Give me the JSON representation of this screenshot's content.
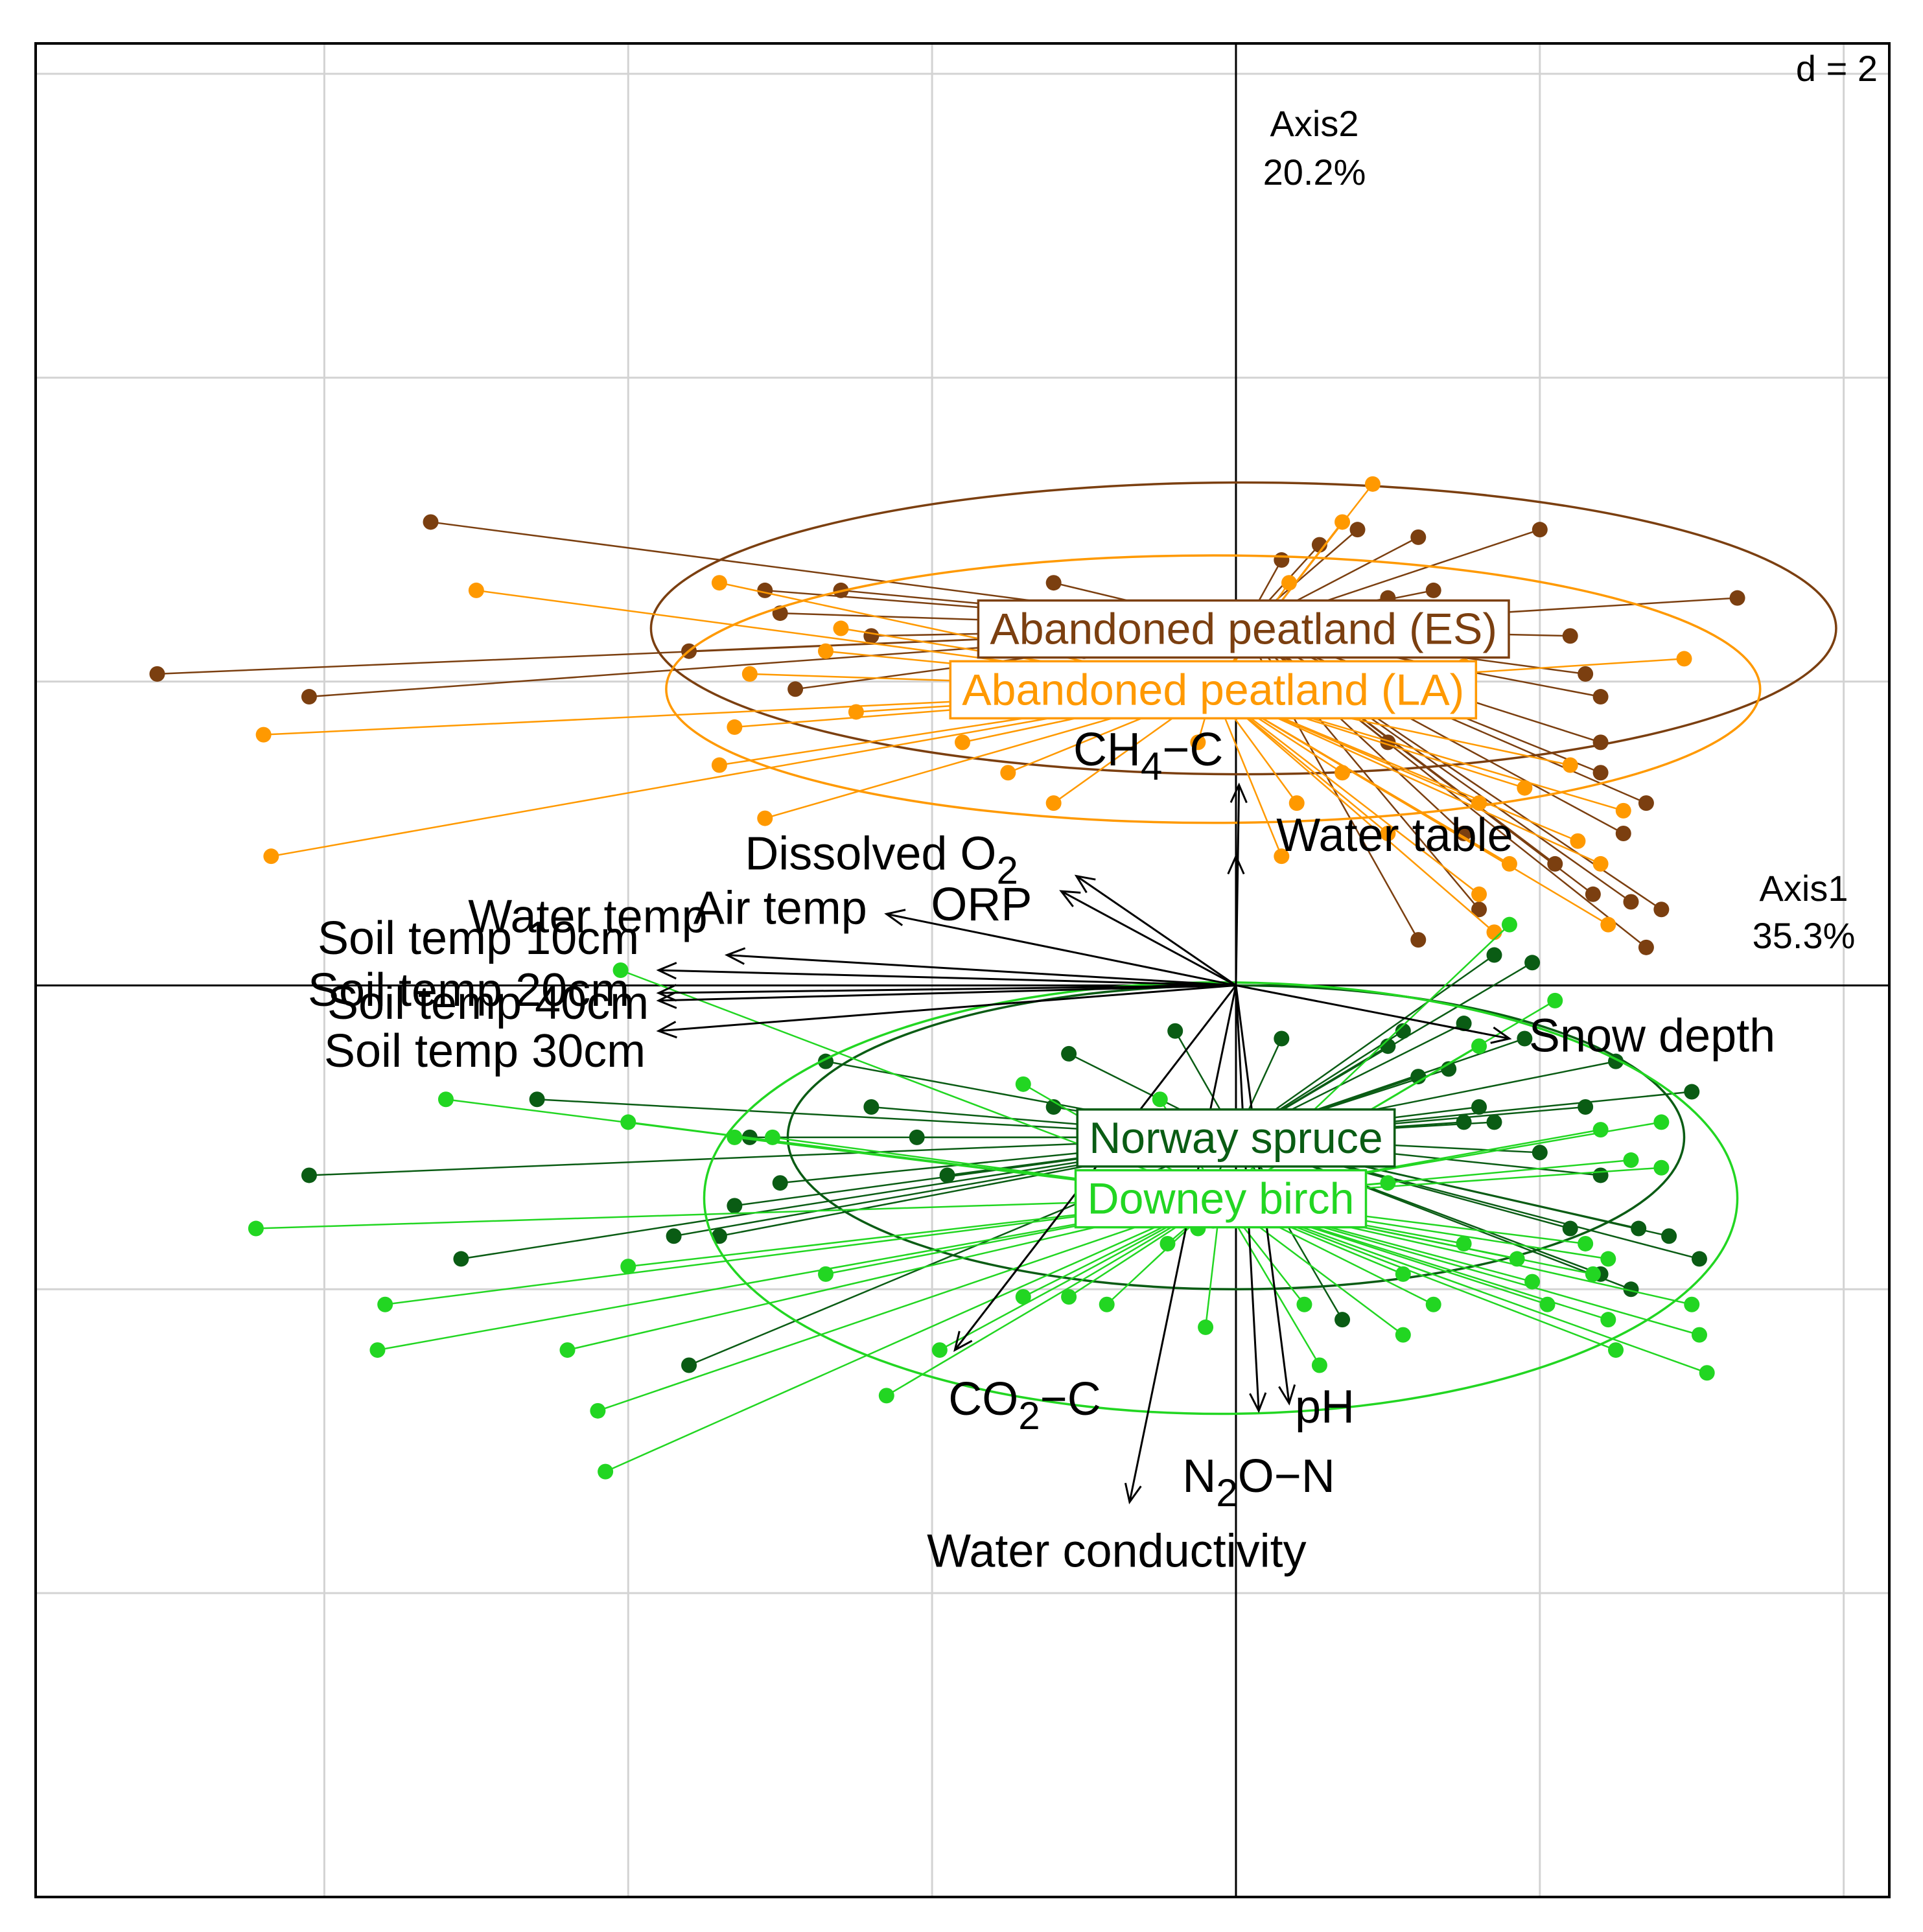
{
  "chart_data": {
    "type": "scatter",
    "scale_label": "d = 2",
    "xlim": [
      -7.9,
      4.3
    ],
    "ylim": [
      -6.0,
      6.2
    ],
    "grid": true,
    "grid_step": 2,
    "axis1": {
      "name": "Axis1",
      "variance": "35.3%"
    },
    "axis2": {
      "name": "Axis2",
      "variance": "20.2%"
    },
    "groups": [
      {
        "name": "Abandoned peatland (ES)",
        "color": "#7b3f10",
        "center": [
          0.05,
          2.35
        ],
        "ellipse": {
          "rx": 3.9,
          "ry": 0.96
        },
        "points": [
          [
            -5.3,
            3.05
          ],
          [
            -7.1,
            2.05
          ],
          [
            -6.1,
            1.9
          ],
          [
            0.3,
            2.8
          ],
          [
            0.55,
            2.9
          ],
          [
            1.2,
            2.95
          ],
          [
            1.3,
            2.6
          ],
          [
            2.0,
            3.0
          ],
          [
            2.3,
            2.05
          ],
          [
            3.3,
            2.55
          ],
          [
            2.4,
            1.4
          ],
          [
            2.55,
            1.0
          ],
          [
            2.35,
            0.6
          ],
          [
            2.6,
            0.55
          ],
          [
            -1.2,
            2.65
          ],
          [
            -3.1,
            2.6
          ],
          [
            -2.4,
            2.3
          ],
          [
            -3.6,
            2.2
          ],
          [
            -2.6,
            2.6
          ],
          [
            -3.0,
            2.45
          ],
          [
            -2.9,
            1.95
          ],
          [
            1.0,
            2.55
          ],
          [
            2.4,
            1.6
          ],
          [
            2.7,
            1.2
          ],
          [
            2.7,
            0.25
          ],
          [
            1.5,
            1.0
          ],
          [
            1.6,
            0.5
          ],
          [
            2.2,
            2.3
          ],
          [
            2.4,
            1.9
          ],
          [
            2.8,
            0.5
          ],
          [
            0.8,
            3.0
          ],
          [
            -1.0,
            2.2
          ],
          [
            -1.5,
            2.4
          ],
          [
            1.0,
            1.6
          ],
          [
            2.1,
            0.8
          ],
          [
            1.2,
            0.3
          ]
        ]
      },
      {
        "name": "Abandoned peatland (LA)",
        "color": "#ff9900",
        "center": [
          -0.15,
          1.95
        ],
        "ellipse": {
          "rx": 3.6,
          "ry": 0.88
        },
        "points": [
          [
            -5.0,
            2.6
          ],
          [
            -6.4,
            1.65
          ],
          [
            -6.35,
            0.85
          ],
          [
            0.9,
            3.3
          ],
          [
            0.7,
            3.05
          ],
          [
            0.35,
            2.65
          ],
          [
            -3.4,
            2.65
          ],
          [
            -2.7,
            2.2
          ],
          [
            -3.3,
            1.7
          ],
          [
            -3.4,
            1.45
          ],
          [
            -3.1,
            1.1
          ],
          [
            -1.2,
            1.2
          ],
          [
            -0.25,
            1.6
          ],
          [
            -2.6,
            2.35
          ],
          [
            -3.2,
            2.05
          ],
          [
            0.3,
            1.9
          ],
          [
            0.4,
            1.2
          ],
          [
            0.3,
            0.85
          ],
          [
            1.5,
            2.1
          ],
          [
            2.95,
            2.15
          ],
          [
            2.2,
            1.45
          ],
          [
            2.55,
            1.15
          ],
          [
            2.25,
            0.95
          ],
          [
            1.6,
            1.2
          ],
          [
            1.8,
            0.8
          ],
          [
            2.4,
            0.8
          ],
          [
            2.45,
            0.4
          ],
          [
            1.7,
            0.35
          ],
          [
            1.6,
            0.6
          ],
          [
            1.9,
            1.3
          ],
          [
            -2.5,
            1.8
          ],
          [
            -1.8,
            1.6
          ],
          [
            -1.5,
            1.4
          ],
          [
            0.7,
            1.4
          ],
          [
            1.0,
            1.0
          ]
        ]
      },
      {
        "name": "Norway spruce",
        "color": "#0a5c14",
        "center": [
          0.0,
          -1.0
        ],
        "ellipse": {
          "rx": 2.95,
          "ry": 1.0
        },
        "points": [
          [
            -6.1,
            -1.25
          ],
          [
            -5.1,
            -1.8
          ],
          [
            -4.6,
            -0.75
          ],
          [
            -3.7,
            -1.65
          ],
          [
            -3.6,
            -2.5
          ],
          [
            -3.4,
            -1.65
          ],
          [
            -3.3,
            -1.45
          ],
          [
            -3.0,
            -1.3
          ],
          [
            -2.7,
            -0.5
          ],
          [
            -2.4,
            -0.8
          ],
          [
            -1.9,
            -1.25
          ],
          [
            -1.1,
            -0.45
          ],
          [
            -0.4,
            -0.3
          ],
          [
            -0.2,
            -1.4
          ],
          [
            0.3,
            -0.35
          ],
          [
            0.45,
            -1.55
          ],
          [
            0.7,
            -2.2
          ],
          [
            1.0,
            -0.4
          ],
          [
            1.1,
            -0.3
          ],
          [
            1.2,
            -0.6
          ],
          [
            1.4,
            -0.55
          ],
          [
            1.5,
            -0.25
          ],
          [
            1.6,
            -0.8
          ],
          [
            1.7,
            -0.9
          ],
          [
            1.7,
            0.2
          ],
          [
            1.95,
            0.15
          ],
          [
            2.0,
            -1.1
          ],
          [
            2.2,
            -1.6
          ],
          [
            2.3,
            -0.8
          ],
          [
            2.4,
            -1.25
          ],
          [
            2.4,
            -1.9
          ],
          [
            2.5,
            -0.5
          ],
          [
            2.6,
            -2.0
          ],
          [
            2.65,
            -1.6
          ],
          [
            2.85,
            -1.65
          ],
          [
            3.05,
            -1.8
          ],
          [
            3.0,
            -0.7
          ],
          [
            1.9,
            -0.35
          ],
          [
            1.5,
            -0.9
          ],
          [
            -2.1,
            -1.0
          ],
          [
            -1.2,
            -0.8
          ],
          [
            -3.2,
            -1.0
          ]
        ]
      },
      {
        "name": "Downey birch",
        "color": "#22d622",
        "center": [
          -0.1,
          -1.4
        ],
        "ellipse": {
          "rx": 3.4,
          "ry": 1.42
        },
        "points": [
          [
            -6.45,
            -1.6
          ],
          [
            -5.6,
            -2.1
          ],
          [
            -5.65,
            -2.4
          ],
          [
            -5.2,
            -0.75
          ],
          [
            -4.4,
            -2.4
          ],
          [
            -4.2,
            -2.8
          ],
          [
            -4.15,
            -3.2
          ],
          [
            -4.0,
            -0.9
          ],
          [
            -4.05,
            0.1
          ],
          [
            -4.0,
            -1.85
          ],
          [
            -3.3,
            -1.0
          ],
          [
            -3.05,
            -1.0
          ],
          [
            -2.7,
            -1.9
          ],
          [
            -2.3,
            -2.7
          ],
          [
            -1.95,
            -2.4
          ],
          [
            -1.4,
            -2.05
          ],
          [
            -1.1,
            -2.05
          ],
          [
            -0.85,
            -2.1
          ],
          [
            -0.5,
            -0.75
          ],
          [
            -0.45,
            -1.7
          ],
          [
            -0.3,
            -1.35
          ],
          [
            -0.25,
            -1.6
          ],
          [
            -0.15,
            -1.55
          ],
          [
            0.05,
            -1.55
          ],
          [
            0.3,
            -1.45
          ],
          [
            -0.2,
            -2.25
          ],
          [
            0.45,
            -2.1
          ],
          [
            0.55,
            -2.5
          ],
          [
            1.1,
            -2.3
          ],
          [
            1.3,
            -2.1
          ],
          [
            1.1,
            -1.9
          ],
          [
            1.5,
            -1.7
          ],
          [
            1.85,
            -1.8
          ],
          [
            1.95,
            -1.95
          ],
          [
            2.05,
            -2.1
          ],
          [
            2.3,
            -1.7
          ],
          [
            2.35,
            -1.9
          ],
          [
            2.4,
            -0.95
          ],
          [
            2.6,
            -1.15
          ],
          [
            2.8,
            -0.9
          ],
          [
            2.8,
            -1.2
          ],
          [
            2.45,
            -2.2
          ],
          [
            2.5,
            -2.4
          ],
          [
            2.45,
            -1.8
          ],
          [
            1.6,
            -0.4
          ],
          [
            1.8,
            0.4
          ],
          [
            2.1,
            -0.1
          ],
          [
            3.0,
            -2.1
          ],
          [
            3.05,
            -2.3
          ],
          [
            3.1,
            -2.55
          ],
          [
            1.0,
            -1.3
          ],
          [
            -1.4,
            -0.65
          ]
        ]
      }
    ],
    "variables": [
      {
        "name": "CH₄−C",
        "base": "CH",
        "sub": "4",
        "suffix": "−C",
        "x": 0.02,
        "y": 1.32
      },
      {
        "name": "Water table",
        "x": 0.0,
        "y": 0.85
      },
      {
        "name": "Dissolved O₂",
        "base": "Dissolved O",
        "sub": "2",
        "suffix": "",
        "x": -1.05,
        "y": 0.72
      },
      {
        "name": "ORP",
        "x": -1.15,
        "y": 0.62
      },
      {
        "name": "Air temp",
        "x": -2.3,
        "y": 0.47
      },
      {
        "name": "Water temp",
        "x": -3.35,
        "y": 0.2
      },
      {
        "name": "Soil temp 10cm",
        "x": -3.8,
        "y": 0.1
      },
      {
        "name": "Soil temp 20cm",
        "x": -3.8,
        "y": -0.05
      },
      {
        "name": "Soil temp 40cm",
        "x": -3.8,
        "y": -0.1
      },
      {
        "name": "Soil temp 30cm",
        "x": -3.8,
        "y": -0.3
      },
      {
        "name": "Snow depth",
        "x": 1.8,
        "y": -0.35
      },
      {
        "name": "CO₂−C",
        "base": "CO",
        "sub": "2",
        "suffix": "−C",
        "x": -1.85,
        "y": -2.4
      },
      {
        "name": "Water conductivity",
        "x": -0.7,
        "y": -3.4
      },
      {
        "name": "N₂O−N",
        "base": "N",
        "sub": "2",
        "suffix": "O−N",
        "x": 0.15,
        "y": -2.8
      },
      {
        "name": "pH",
        "x": 0.35,
        "y": -2.75
      }
    ]
  }
}
